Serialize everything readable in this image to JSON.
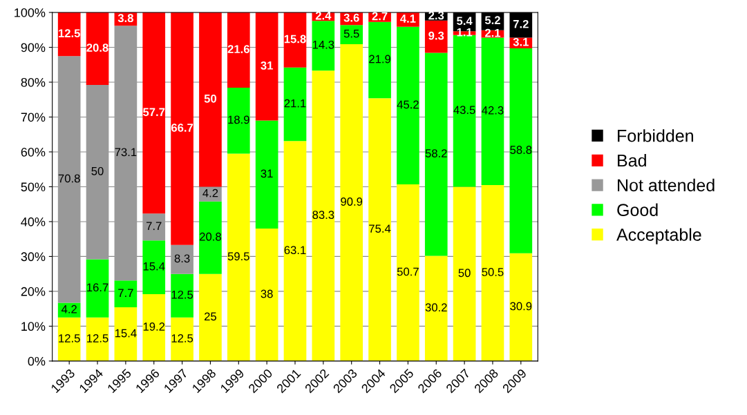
{
  "chart_data": {
    "type": "bar",
    "stacked": true,
    "data_labels": true,
    "grid": "y",
    "legend": "right",
    "categories": [
      "1993",
      "1994",
      "1995",
      "1996",
      "1997",
      "1998",
      "1999",
      "2000",
      "2001",
      "2002",
      "2003",
      "2004",
      "2005",
      "2006",
      "2007",
      "2008",
      "2009"
    ],
    "ylim": [
      0,
      100
    ],
    "yticks": [
      {
        "value": 0,
        "label": "0%"
      },
      {
        "value": 10,
        "label": "10%"
      },
      {
        "value": 20,
        "label": "20%"
      },
      {
        "value": 30,
        "label": "30%"
      },
      {
        "value": 40,
        "label": "40%"
      },
      {
        "value": 50,
        "label": "50%"
      },
      {
        "value": 60,
        "label": "60%"
      },
      {
        "value": 70,
        "label": "70%"
      },
      {
        "value": 80,
        "label": "80%"
      },
      {
        "value": 90,
        "label": "90%"
      },
      {
        "value": 100,
        "label": "100%"
      }
    ],
    "series": [
      {
        "name": "Acceptable",
        "color": "#ffff00",
        "values": [
          12.5,
          12.5,
          15.4,
          19.2,
          12.5,
          25,
          59.5,
          38,
          63.1,
          83.3,
          90.9,
          75.4,
          50.7,
          30.2,
          50,
          50.5,
          30.9
        ]
      },
      {
        "name": "Good",
        "color": "#00ff00",
        "values": [
          4.2,
          16.7,
          7.7,
          15.4,
          12.5,
          20.8,
          18.9,
          31,
          21.1,
          14.3,
          5.5,
          21.9,
          45.2,
          58.2,
          43.5,
          42.3,
          58.8
        ]
      },
      {
        "name": "Not attended",
        "color": "#999999",
        "values": [
          70.8,
          50,
          73.1,
          7.7,
          8.3,
          4.2,
          null,
          null,
          null,
          null,
          null,
          null,
          null,
          null,
          null,
          null,
          null
        ]
      },
      {
        "name": "Bad",
        "color": "#ff0000",
        "values": [
          12.5,
          20.8,
          3.8,
          57.7,
          66.7,
          50,
          21.6,
          31,
          15.8,
          2.4,
          3.6,
          2.7,
          4.1,
          9.3,
          1.1,
          2.1,
          3.1
        ]
      },
      {
        "name": "Forbidden",
        "color": "#000000",
        "values": [
          null,
          null,
          null,
          null,
          null,
          null,
          null,
          null,
          null,
          null,
          null,
          null,
          null,
          2.3,
          5.4,
          5.2,
          7.2
        ]
      }
    ]
  }
}
